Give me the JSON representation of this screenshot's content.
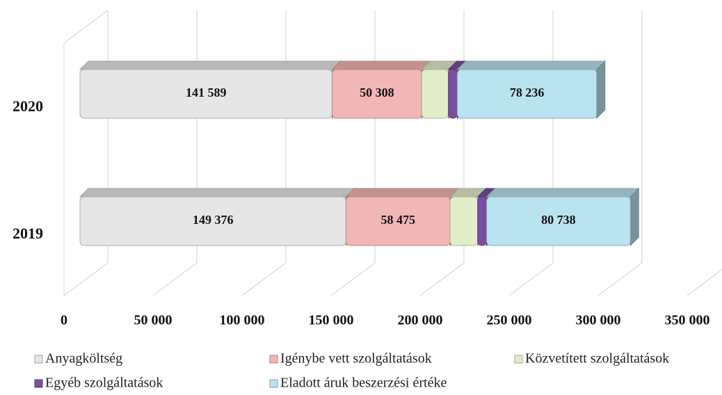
{
  "chart_data": {
    "type": "stacked_bar_3d_horizontal",
    "categories": [
      "2020",
      "2019"
    ],
    "series": [
      {
        "name": "Anyagköltség",
        "color": "#e6e6e6",
        "values": [
          141589,
          149376
        ],
        "value_labels": [
          "141 589",
          "149 376"
        ]
      },
      {
        "name": "Igénybe vett szolgáltatások",
        "color": "#f2b6b6",
        "values": [
          50308,
          58475
        ],
        "value_labels": [
          "50 308",
          "58 475"
        ]
      },
      {
        "name": "Közvetített szolgáltatások",
        "color": "#e2edca",
        "values": [
          15000,
          15500
        ]
      },
      {
        "name": "Egyéb szolgáltatások",
        "color": "#7a4ea3",
        "values": [
          5000,
          5000
        ]
      },
      {
        "name": "Eladott áruk beszerzési értéke",
        "color": "#b9e3ef",
        "values": [
          78236,
          80738
        ],
        "value_labels": [
          "78 236",
          "80 738"
        ]
      }
    ],
    "xlim": [
      0,
      350000
    ],
    "xticks": [
      0,
      {
        "value": 50000,
        "label": "50 000"
      },
      {
        "value": 100000,
        "label": "100 000"
      },
      {
        "value": 150000,
        "label": "150 000"
      },
      {
        "value": 200000,
        "label": "200 000"
      },
      {
        "value": 250000,
        "label": "250 000"
      },
      {
        "value": 300000,
        "label": "300 000"
      },
      {
        "value": 350000,
        "label": "350 000"
      }
    ],
    "grid": true
  }
}
